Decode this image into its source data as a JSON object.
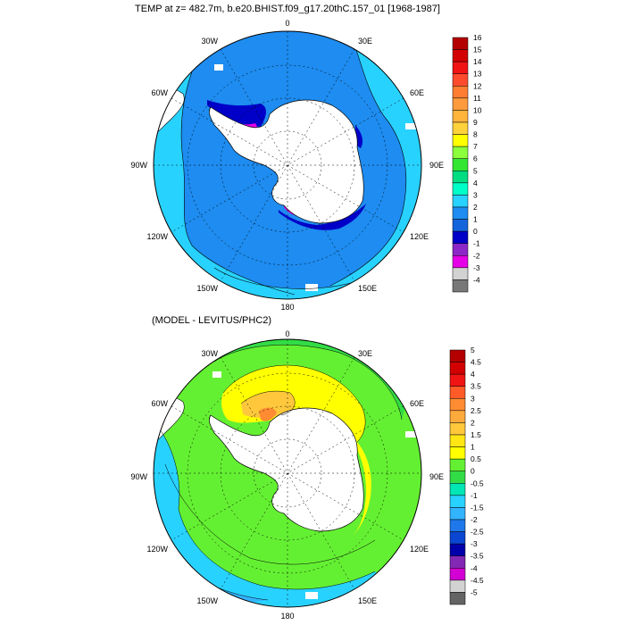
{
  "top_panel": {
    "title": "TEMP at z= 482.7m, b.e20.BHIST.f09_g17.20thC.157_01 [1968-1987]",
    "longitude_labels": [
      "0",
      "30E",
      "60E",
      "90E",
      "120E",
      "150E",
      "180",
      "150W",
      "120W",
      "90W",
      "60W",
      "30W"
    ],
    "colorbar": {
      "labels": [
        "16",
        "15",
        "14",
        "13",
        "12",
        "11",
        "10",
        "9",
        "8",
        "7",
        "6",
        "5",
        "4",
        "3",
        "2",
        "1",
        "0",
        "-1",
        "-2",
        "-3",
        "-4"
      ],
      "colors": [
        "#b40000",
        "#d20000",
        "#f01414",
        "#ff4b2d",
        "#ff7d32",
        "#ff9b3c",
        "#ffb43c",
        "#ffd23c",
        "#ffff00",
        "#8cff3c",
        "#32e632",
        "#00dc82",
        "#00ffc8",
        "#28d2ff",
        "#1e8cf0",
        "#1464dc",
        "#0000c8",
        "#8c28c8",
        "#e600e6",
        "#d2d2d2",
        "#787878"
      ]
    }
  },
  "bottom_panel": {
    "title": "(MODEL - LEVITUS/PHC2)",
    "longitude_labels": [
      "0",
      "30E",
      "60E",
      "90E",
      "120E",
      "150E",
      "180",
      "150W",
      "120W",
      "90W",
      "60W",
      "30W"
    ],
    "colorbar": {
      "labels": [
        "5",
        "4.5",
        "4",
        "3.5",
        "3",
        "2.5",
        "2",
        "1.5",
        "1",
        "0.5",
        "0",
        "-0.5",
        "-1",
        "-1.5",
        "-2",
        "-2.5",
        "-3",
        "-3.5",
        "-4",
        "-4.5",
        "-5"
      ],
      "colors": [
        "#b40000",
        "#d20000",
        "#f01414",
        "#ff5a28",
        "#ff8c32",
        "#ffaa3c",
        "#ffc83c",
        "#ffe614",
        "#ffff00",
        "#64f032",
        "#32dc46",
        "#00e6b4",
        "#28d2ff",
        "#32b4ff",
        "#1e78eb",
        "#0a46d2",
        "#0000aa",
        "#8228b4",
        "#d200d2",
        "#d2d2d2",
        "#646464"
      ]
    }
  },
  "field_colors": {
    "land": "#ffffff",
    "top_open_ocean": "#1e8cf0",
    "top_shelf": "#28d2ff",
    "top_cold": "#0000c8",
    "top_freezing": "#e600e6",
    "bot_green": "#64f032",
    "bot_zero": "#32dc46",
    "bot_warm": "#ffff00",
    "bot_warmer": "#ffc83c",
    "bot_hot": "#ff8c32",
    "bot_cool": "#28d2ff",
    "bot_cooler": "#32b4ff",
    "bot_cold": "#0000aa",
    "bot_purple": "#8228b4"
  }
}
